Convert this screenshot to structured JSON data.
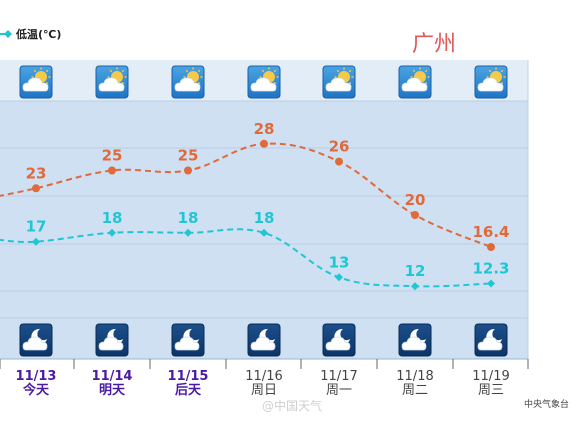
{
  "legend": {
    "low_label": "低温(℃)",
    "low_color": "#1fc7d2",
    "high_color": "#e06a3a"
  },
  "city": "广州",
  "credit": "中央气象台",
  "watermark": "@中国天气",
  "icons": {
    "day": "partly-cloudy-sun-icon",
    "night": "cloud-moon-icon"
  },
  "chart_data": {
    "type": "line",
    "x": [
      "11/13",
      "11/14",
      "11/15",
      "11/16",
      "11/17",
      "11/18",
      "11/19"
    ],
    "day_labels": [
      "今天",
      "明天",
      "后天",
      "周日",
      "周一",
      "周二",
      "周三"
    ],
    "series": [
      {
        "values": [
          23,
          25,
          25,
          28,
          26,
          20,
          16.4
        ],
        "labels": [
          "23",
          "25",
          "25",
          "28",
          "26",
          "20",
          "16.4"
        ]
      },
      {
        "name": "低温(℃)",
        "values": [
          17,
          18,
          18,
          18,
          13,
          12,
          12.3
        ],
        "labels": [
          "17",
          "18",
          "18",
          "18",
          "13",
          "12",
          "12.3"
        ]
      }
    ],
    "highlighted_days": 3,
    "grid": true
  }
}
